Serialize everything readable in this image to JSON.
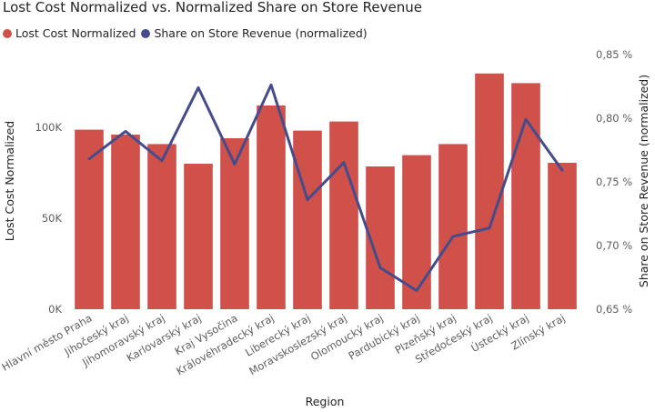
{
  "chart_data": {
    "type": "bar",
    "title": "Lost Cost Normalized vs. Normalized Share on Store Revenue",
    "xlabel": "Region",
    "ylabel": "Lost Cost Normalized",
    "y2label": "Share on Store Revenue (normalized)",
    "legend_position": "top-left",
    "grid": false,
    "categories": [
      "Hlavní město Praha",
      "Jihočeský kraj",
      "Jihomoravský kraj",
      "Karlovarský kraj",
      "Kraj Vysočina",
      "Královéhradecký kraj",
      "Liberecký kraj",
      "Moravskoslezský kraj",
      "Olomoucký kraj",
      "Pardubický kraj",
      "Plzeňský kraj",
      "Středočeský kraj",
      "Ústecký kraj",
      "Zlínský kraj"
    ],
    "series": [
      {
        "name": "Lost Cost Normalized",
        "type": "bar",
        "axis": "left",
        "color": "#d0504a",
        "values": [
          98700,
          96000,
          90800,
          80000,
          94000,
          112000,
          98200,
          103200,
          78500,
          84700,
          90800,
          129600,
          124300,
          80500
        ]
      },
      {
        "name": "Share on Store Revenue (normalized)",
        "type": "line",
        "axis": "right",
        "color": "#454c8b",
        "values": [
          0.7681,
          0.7897,
          0.7666,
          0.824,
          0.7638,
          0.8262,
          0.736,
          0.7652,
          0.6826,
          0.6646,
          0.7072,
          0.7137,
          0.7991,
          0.7592
        ]
      }
    ],
    "y_ticks": [
      "0K",
      "50K",
      "100K"
    ],
    "y_tick_values": [
      0,
      50000,
      100000
    ],
    "ylim": [
      0,
      140000
    ],
    "y2_ticks": [
      "0,65 %",
      "0,70 %",
      "0,75 %",
      "0,80 %",
      "0,85 %"
    ],
    "y2_tick_values": [
      0.65,
      0.7,
      0.75,
      0.8,
      0.85
    ],
    "y2lim": [
      0.65,
      0.85
    ]
  }
}
